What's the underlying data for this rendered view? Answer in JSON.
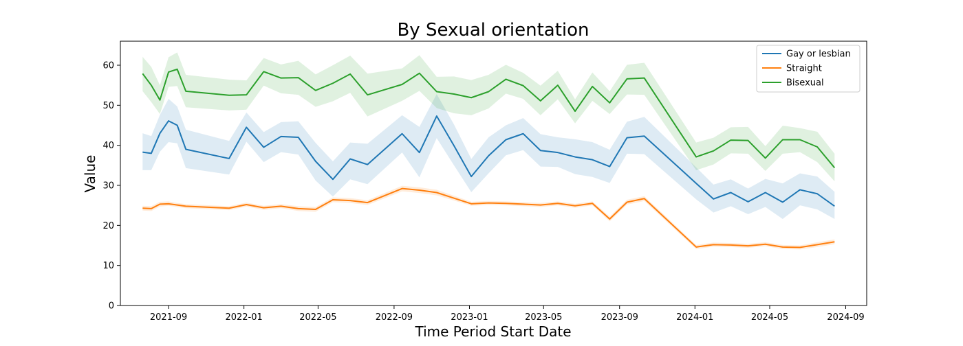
{
  "chart_data": {
    "type": "line",
    "title": "By Sexual orientation",
    "xlabel": "Time Period Start Date",
    "ylabel": "Value",
    "xlim": [
      "2021-06-15",
      "2024-10-05"
    ],
    "ylim": [
      0,
      66
    ],
    "x_ticks": [
      "2021-09",
      "2022-01",
      "2022-05",
      "2022-09",
      "2023-01",
      "2023-05",
      "2023-09",
      "2024-01",
      "2024-05",
      "2024-09"
    ],
    "y_ticks": [
      0,
      10,
      20,
      30,
      40,
      50,
      60
    ],
    "grid": false,
    "legend_position": "top-right",
    "x": [
      "2021-07-21",
      "2021-08-04",
      "2021-08-18",
      "2021-09-01",
      "2021-09-15",
      "2021-09-29",
      "2021-12-08",
      "2022-01-05",
      "2022-02-02",
      "2022-03-02",
      "2022-03-30",
      "2022-04-27",
      "2022-05-25",
      "2022-06-22",
      "2022-07-20",
      "2022-09-14",
      "2022-10-12",
      "2022-11-09",
      "2022-12-07",
      "2023-01-04",
      "2023-02-01",
      "2023-03-01",
      "2023-03-29",
      "2023-04-26",
      "2023-05-24",
      "2023-06-21",
      "2023-07-19",
      "2023-08-16",
      "2023-09-13",
      "2023-10-11",
      "2024-01-03",
      "2024-01-31",
      "2024-02-28",
      "2024-03-27",
      "2024-04-24",
      "2024-05-22",
      "2024-06-19",
      "2024-07-17",
      "2024-08-14"
    ],
    "series": [
      {
        "name": "Gay or lesbian",
        "color": "#1f77b4",
        "values": [
          38.3,
          38.0,
          43.0,
          46.1,
          45.0,
          39.0,
          36.7,
          44.5,
          39.5,
          42.2,
          42.0,
          36.0,
          31.5,
          36.6,
          35.2,
          42.9,
          38.2,
          47.3,
          39.9,
          32.2,
          37.4,
          41.4,
          42.9,
          38.7,
          38.2,
          37.1,
          36.4,
          34.7,
          41.9,
          42.3,
          30.5,
          26.6,
          28.2,
          25.9,
          28.2,
          25.8,
          28.9,
          27.9,
          24.8
        ],
        "lower": [
          33.8,
          33.8,
          38.4,
          40.8,
          40.5,
          34.3,
          32.7,
          40.9,
          35.8,
          38.3,
          37.7,
          31.2,
          27.2,
          31.5,
          30.3,
          38.2,
          32.0,
          41.8,
          35.0,
          28.3,
          33.0,
          37.5,
          38.8,
          34.7,
          34.6,
          32.8,
          32.1,
          30.6,
          37.9,
          37.8,
          26.5,
          23.2,
          24.8,
          22.8,
          24.6,
          21.6,
          25.0,
          24.0,
          21.6
        ],
        "upper": [
          43.0,
          42.3,
          47.6,
          51.6,
          49.7,
          43.9,
          41.1,
          48.2,
          43.3,
          45.8,
          46.0,
          40.6,
          36.0,
          40.7,
          40.4,
          47.5,
          44.6,
          52.8,
          45.2,
          36.6,
          42.0,
          45.0,
          46.8,
          42.8,
          42.0,
          41.5,
          40.8,
          38.9,
          45.9,
          47.1,
          34.5,
          30.2,
          31.5,
          29.2,
          31.6,
          30.5,
          33.0,
          32.2,
          28.4
        ]
      },
      {
        "name": "Straight",
        "color": "#ff7f0e",
        "values": [
          24.3,
          24.2,
          25.3,
          25.4,
          25.1,
          24.8,
          24.3,
          25.2,
          24.4,
          24.8,
          24.2,
          24.0,
          26.4,
          26.2,
          25.7,
          29.2,
          28.8,
          28.2,
          26.8,
          25.4,
          25.6,
          25.5,
          25.3,
          25.1,
          25.5,
          24.9,
          25.5,
          21.6,
          25.8,
          26.7,
          14.6,
          15.2,
          15.1,
          14.9,
          15.3,
          14.6,
          14.5,
          15.2,
          15.9
        ],
        "lower": [
          23.7,
          23.6,
          24.7,
          24.9,
          24.6,
          24.3,
          23.8,
          24.7,
          23.9,
          24.3,
          23.6,
          23.4,
          25.8,
          25.6,
          25.1,
          28.5,
          28.1,
          27.5,
          26.2,
          24.9,
          25.1,
          25.0,
          24.8,
          24.6,
          25.0,
          24.4,
          25.0,
          21.0,
          25.2,
          26.1,
          14.1,
          14.7,
          14.6,
          14.4,
          14.8,
          14.1,
          14.0,
          14.6,
          15.3
        ],
        "upper": [
          24.9,
          24.8,
          25.9,
          26.0,
          25.6,
          25.3,
          24.8,
          25.7,
          24.9,
          25.3,
          24.8,
          24.6,
          27.0,
          26.8,
          26.3,
          29.9,
          29.5,
          28.9,
          27.4,
          25.9,
          26.1,
          26.0,
          25.8,
          25.6,
          26.0,
          25.4,
          26.0,
          22.2,
          26.4,
          27.3,
          15.1,
          15.7,
          15.6,
          15.4,
          15.8,
          15.1,
          15.0,
          15.8,
          16.5
        ]
      },
      {
        "name": "Bisexual",
        "color": "#2ca02c",
        "values": [
          57.9,
          55.0,
          51.3,
          58.3,
          59.0,
          53.5,
          52.5,
          52.6,
          58.4,
          56.8,
          56.9,
          53.7,
          55.5,
          57.8,
          52.6,
          55.2,
          58.0,
          53.4,
          52.8,
          51.9,
          53.4,
          56.5,
          54.9,
          51.1,
          55.0,
          48.5,
          54.7,
          50.6,
          56.6,
          56.8,
          37.1,
          38.6,
          41.3,
          41.2,
          36.8,
          41.4,
          41.4,
          39.6,
          34.4
        ],
        "lower": [
          53.5,
          50.8,
          47.8,
          54.6,
          54.8,
          49.5,
          48.7,
          48.9,
          54.9,
          53.0,
          52.6,
          49.6,
          51.0,
          53.1,
          47.2,
          51.1,
          53.6,
          49.3,
          48.0,
          47.5,
          49.2,
          52.9,
          51.6,
          47.5,
          51.5,
          45.5,
          51.1,
          47.8,
          52.7,
          52.6,
          33.8,
          35.2,
          38.0,
          37.9,
          33.6,
          37.9,
          38.3,
          35.8,
          31.0
        ],
        "upper": [
          62.1,
          59.6,
          55.0,
          62.0,
          63.2,
          57.6,
          56.4,
          56.2,
          61.8,
          60.2,
          61.1,
          57.7,
          60.0,
          62.4,
          57.9,
          59.2,
          62.5,
          57.1,
          57.2,
          56.3,
          57.6,
          60.1,
          58.1,
          54.9,
          58.6,
          51.5,
          58.2,
          53.5,
          60.1,
          60.6,
          40.7,
          41.9,
          44.5,
          44.6,
          39.8,
          44.9,
          44.3,
          43.4,
          37.9
        ]
      }
    ]
  }
}
